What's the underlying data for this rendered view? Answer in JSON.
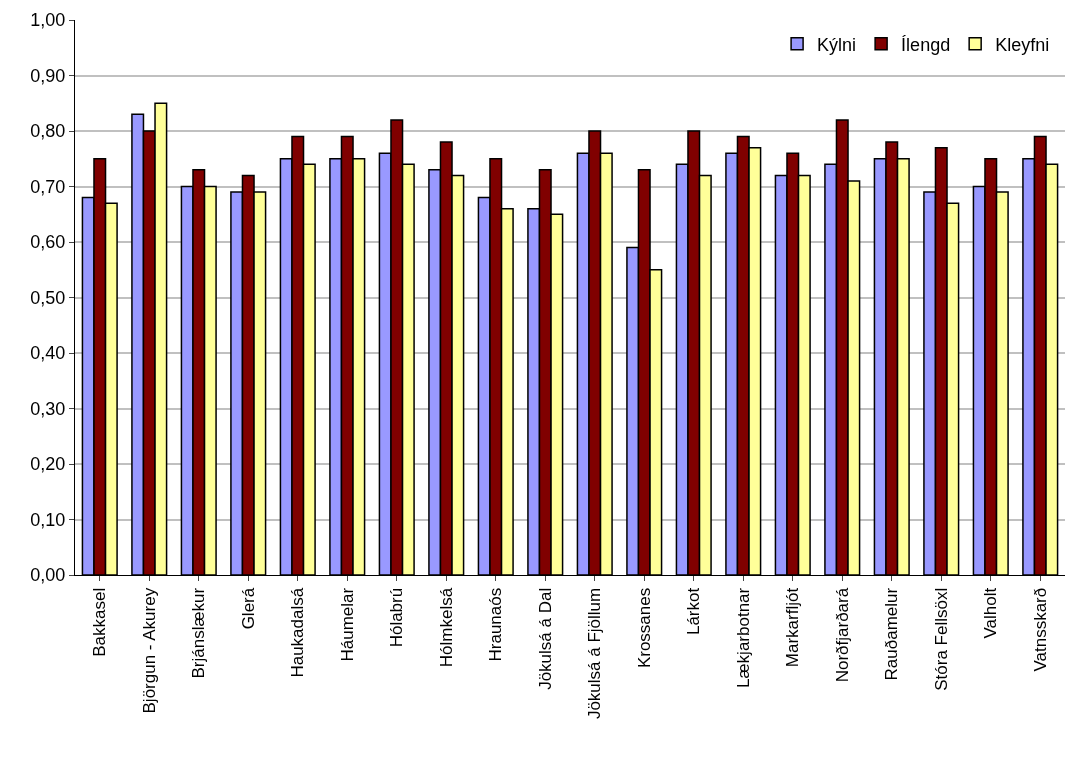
{
  "chart_data": {
    "type": "bar",
    "categories": [
      "Bakkasel",
      "Björgun - Akurey",
      "Brjánslækur",
      "Glerá",
      "Haukadalsá",
      "Háumelar",
      "Hólabrú",
      "Hólmkelsá",
      "Hraunaós",
      "Jökulsá á Dal",
      "Jökulsá á Fjöllum",
      "Krossanes",
      "Lárkot",
      "Lækjarbotnar",
      "Markarfljót",
      "Norðfjarðará",
      "Rauðamelur",
      "Stóra Fellsöxl",
      "Valholt",
      "Vatnsskarð"
    ],
    "series": [
      {
        "name": "Kýlni",
        "color": "#9999ff",
        "values": [
          0.68,
          0.83,
          0.7,
          0.69,
          0.75,
          0.75,
          0.76,
          0.73,
          0.68,
          0.66,
          0.76,
          0.59,
          0.74,
          0.76,
          0.72,
          0.74,
          0.75,
          0.69,
          0.7,
          0.75
        ]
      },
      {
        "name": "Ílengd",
        "color": "#800000",
        "values": [
          0.75,
          0.8,
          0.73,
          0.72,
          0.79,
          0.79,
          0.82,
          0.78,
          0.75,
          0.73,
          0.8,
          0.73,
          0.8,
          0.79,
          0.76,
          0.82,
          0.78,
          0.77,
          0.75,
          0.79
        ]
      },
      {
        "name": "Kleyfni",
        "color": "#ffff99",
        "values": [
          0.67,
          0.85,
          0.7,
          0.69,
          0.74,
          0.75,
          0.74,
          0.72,
          0.66,
          0.65,
          0.76,
          0.55,
          0.72,
          0.77,
          0.72,
          0.71,
          0.75,
          0.67,
          0.69,
          0.74
        ]
      }
    ],
    "ylim": [
      0,
      1
    ],
    "yticks": [
      {
        "value": 0,
        "label": "0,00"
      },
      {
        "value": 0.1,
        "label": "0,10"
      },
      {
        "value": 0.2,
        "label": "0,20"
      },
      {
        "value": 0.3,
        "label": "0,30"
      },
      {
        "value": 0.4,
        "label": "0,40"
      },
      {
        "value": 0.5,
        "label": "0,50"
      },
      {
        "value": 0.6,
        "label": "0,60"
      },
      {
        "value": 0.7,
        "label": "0,70"
      },
      {
        "value": 0.8,
        "label": "0,80"
      },
      {
        "value": 0.9,
        "label": "0,90"
      },
      {
        "value": 1,
        "label": "1,00"
      }
    ],
    "grid": "y",
    "legend": "top right"
  }
}
